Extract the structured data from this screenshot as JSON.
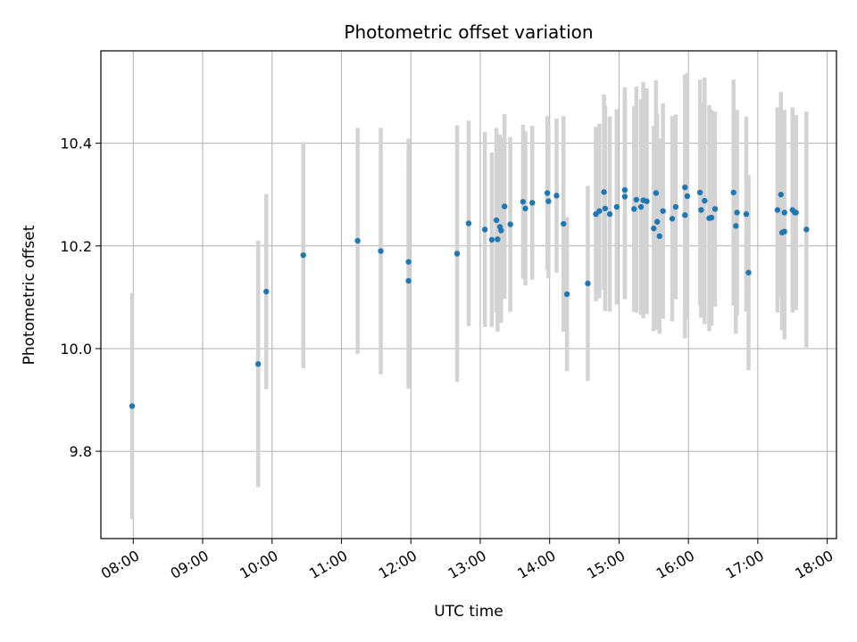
{
  "chart_data": {
    "type": "scatter",
    "title": "Photometric offset variation",
    "xlabel": "UTC time",
    "ylabel": "Photometric offset",
    "grid": true,
    "xlim": [
      "07:32",
      "18:08"
    ],
    "ylim": [
      9.63,
      10.58
    ],
    "xticks": [
      "08:00",
      "09:00",
      "10:00",
      "11:00",
      "12:00",
      "13:00",
      "14:00",
      "15:00",
      "16:00",
      "17:00",
      "18:00"
    ],
    "yticks": [
      9.8,
      10.0,
      10.2,
      10.4
    ],
    "colors": {
      "point": "#1f77b4",
      "errorbar": "#d3d3d3",
      "grid": "#b0b0b0"
    },
    "series": [
      {
        "x": [
          "07:59",
          "09:48",
          "09:55",
          "10:27",
          "11:14",
          "11:34",
          "11:58",
          "11:58",
          "12:40",
          "12:50",
          "13:04",
          "13:10",
          "13:14",
          "13:15",
          "13:17",
          "13:18",
          "13:21",
          "13:26",
          "13:37",
          "13:39",
          "13:45",
          "13:58",
          "13:59",
          "14:06",
          "14:12",
          "14:15",
          "14:33",
          "14:40",
          "14:43",
          "14:47",
          "14:48",
          "14:52",
          "14:58",
          "15:05",
          "15:05",
          "15:13",
          "15:15",
          "15:19",
          "15:21",
          "15:24",
          "15:30",
          "15:32",
          "15:33",
          "15:35",
          "15:38",
          "15:46",
          "15:49",
          "15:57",
          "15:57",
          "15:59",
          "16:10",
          "16:11",
          "16:14",
          "16:18",
          "16:20",
          "16:23",
          "16:39",
          "16:41",
          "16:42",
          "16:50",
          "16:52",
          "17:17",
          "17:20",
          "17:21",
          "17:23",
          "17:23",
          "17:30",
          "17:32",
          "17:33",
          "17:42"
        ],
        "y": [
          9.888,
          9.97,
          10.111,
          10.182,
          10.21,
          10.19,
          10.169,
          10.132,
          10.185,
          10.244,
          10.232,
          10.212,
          10.25,
          10.213,
          10.237,
          10.23,
          10.277,
          10.242,
          10.286,
          10.273,
          10.284,
          10.303,
          10.287,
          10.298,
          10.243,
          10.106,
          10.127,
          10.262,
          10.268,
          10.305,
          10.273,
          10.262,
          10.276,
          10.296,
          10.309,
          10.272,
          10.29,
          10.276,
          10.289,
          10.287,
          10.234,
          10.303,
          10.247,
          10.219,
          10.268,
          10.253,
          10.276,
          10.26,
          10.314,
          10.297,
          10.304,
          10.27,
          10.288,
          10.254,
          10.255,
          10.272,
          10.304,
          10.239,
          10.265,
          10.262,
          10.148,
          10.27,
          10.3,
          10.226,
          10.265,
          10.228,
          10.27,
          10.265,
          10.265,
          10.232
        ],
        "err": [
          0.22,
          0.24,
          0.19,
          0.22,
          0.22,
          0.24,
          0.24,
          0.21,
          0.25,
          0.2,
          0.19,
          0.17,
          0.18,
          0.18,
          0.18,
          0.18,
          0.18,
          0.17,
          0.15,
          0.15,
          0.15,
          0.15,
          0.15,
          0.15,
          0.21,
          0.15,
          0.19,
          0.17,
          0.17,
          0.19,
          0.2,
          0.19,
          0.19,
          0.2,
          0.2,
          0.2,
          0.22,
          0.21,
          0.23,
          0.22,
          0.2,
          0.22,
          0.21,
          0.19,
          0.21,
          0.2,
          0.18,
          0.24,
          0.22,
          0.24,
          0.22,
          0.21,
          0.24,
          0.22,
          0.21,
          0.19,
          0.22,
          0.21,
          0.2,
          0.19,
          0.19,
          0.2,
          0.2,
          0.19,
          0.2,
          0.21,
          0.2,
          0.19,
          0.19,
          0.23
        ]
      }
    ]
  }
}
